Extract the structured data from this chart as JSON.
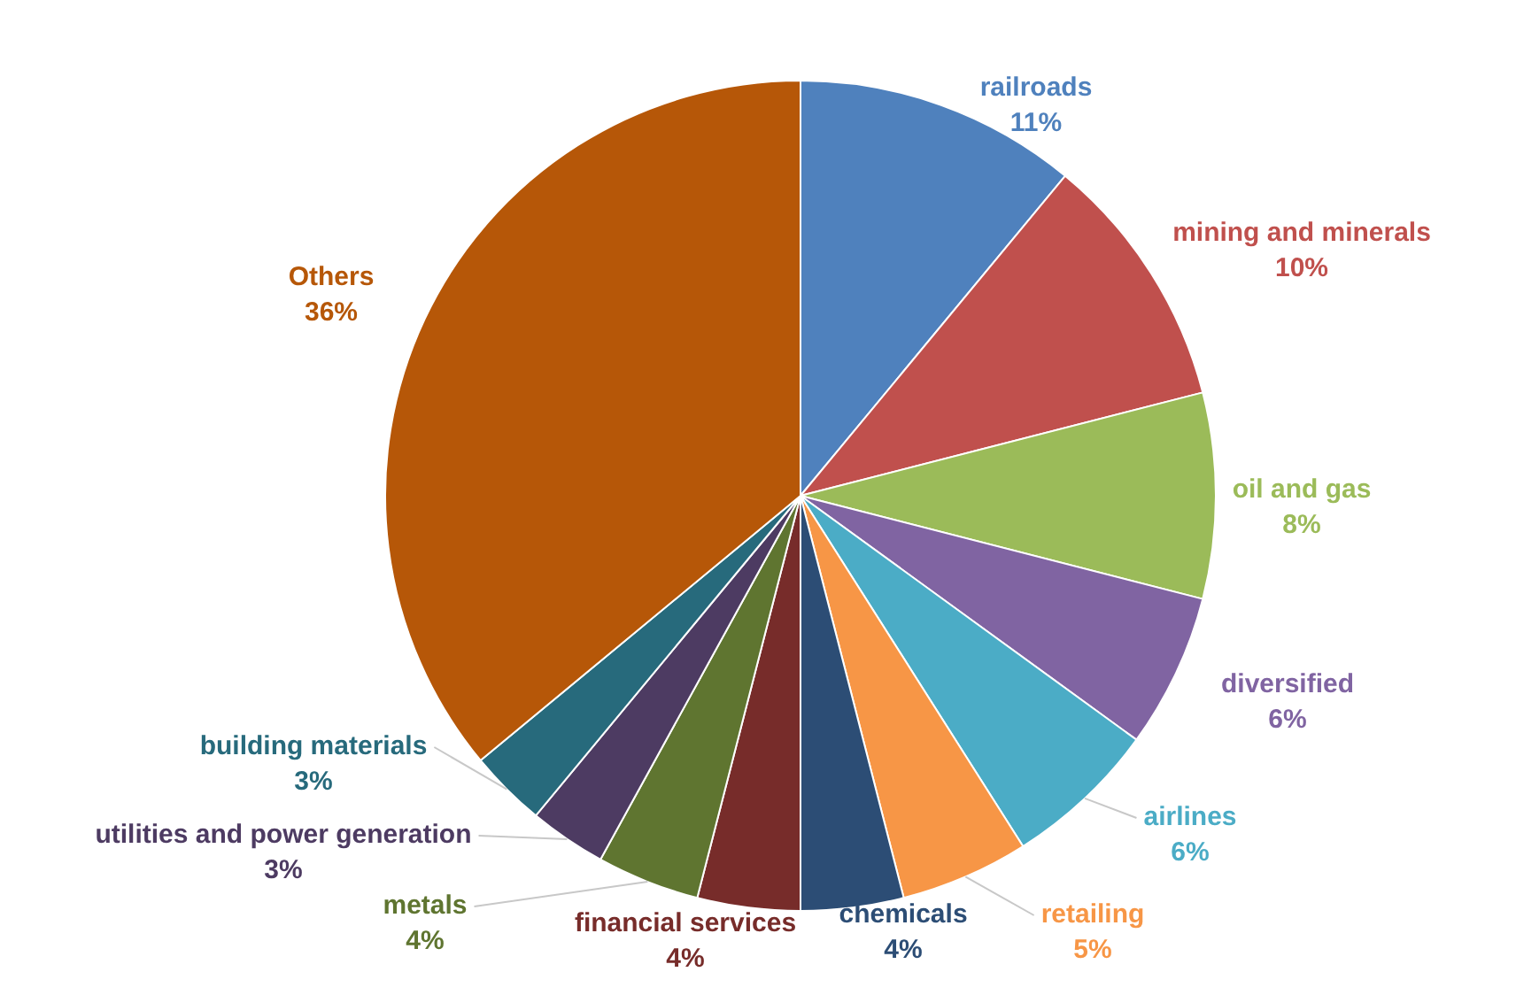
{
  "chart_data": {
    "type": "pie",
    "categories": [
      "railroads",
      "mining and minerals",
      "oil and gas",
      "diversified",
      "airlines",
      "retailing",
      "chemicals",
      "financial services",
      "metals",
      "utilities and power generation",
      "building materials",
      "Others"
    ],
    "values": [
      11,
      10,
      8,
      6,
      6,
      5,
      4,
      4,
      4,
      3,
      3,
      36
    ],
    "value_labels": [
      "11%",
      "10%",
      "8%",
      "6%",
      "6%",
      "5%",
      "4%",
      "4%",
      "4%",
      "3%",
      "3%",
      "36%"
    ],
    "colors": [
      "#4f81bd",
      "#c0504d",
      "#9bbb59",
      "#8064a2",
      "#4bacc6",
      "#f79646",
      "#2c4d75",
      "#772c2a",
      "#5f7530",
      "#4d3b62",
      "#276a7c",
      "#b65708"
    ],
    "legend": false
  }
}
